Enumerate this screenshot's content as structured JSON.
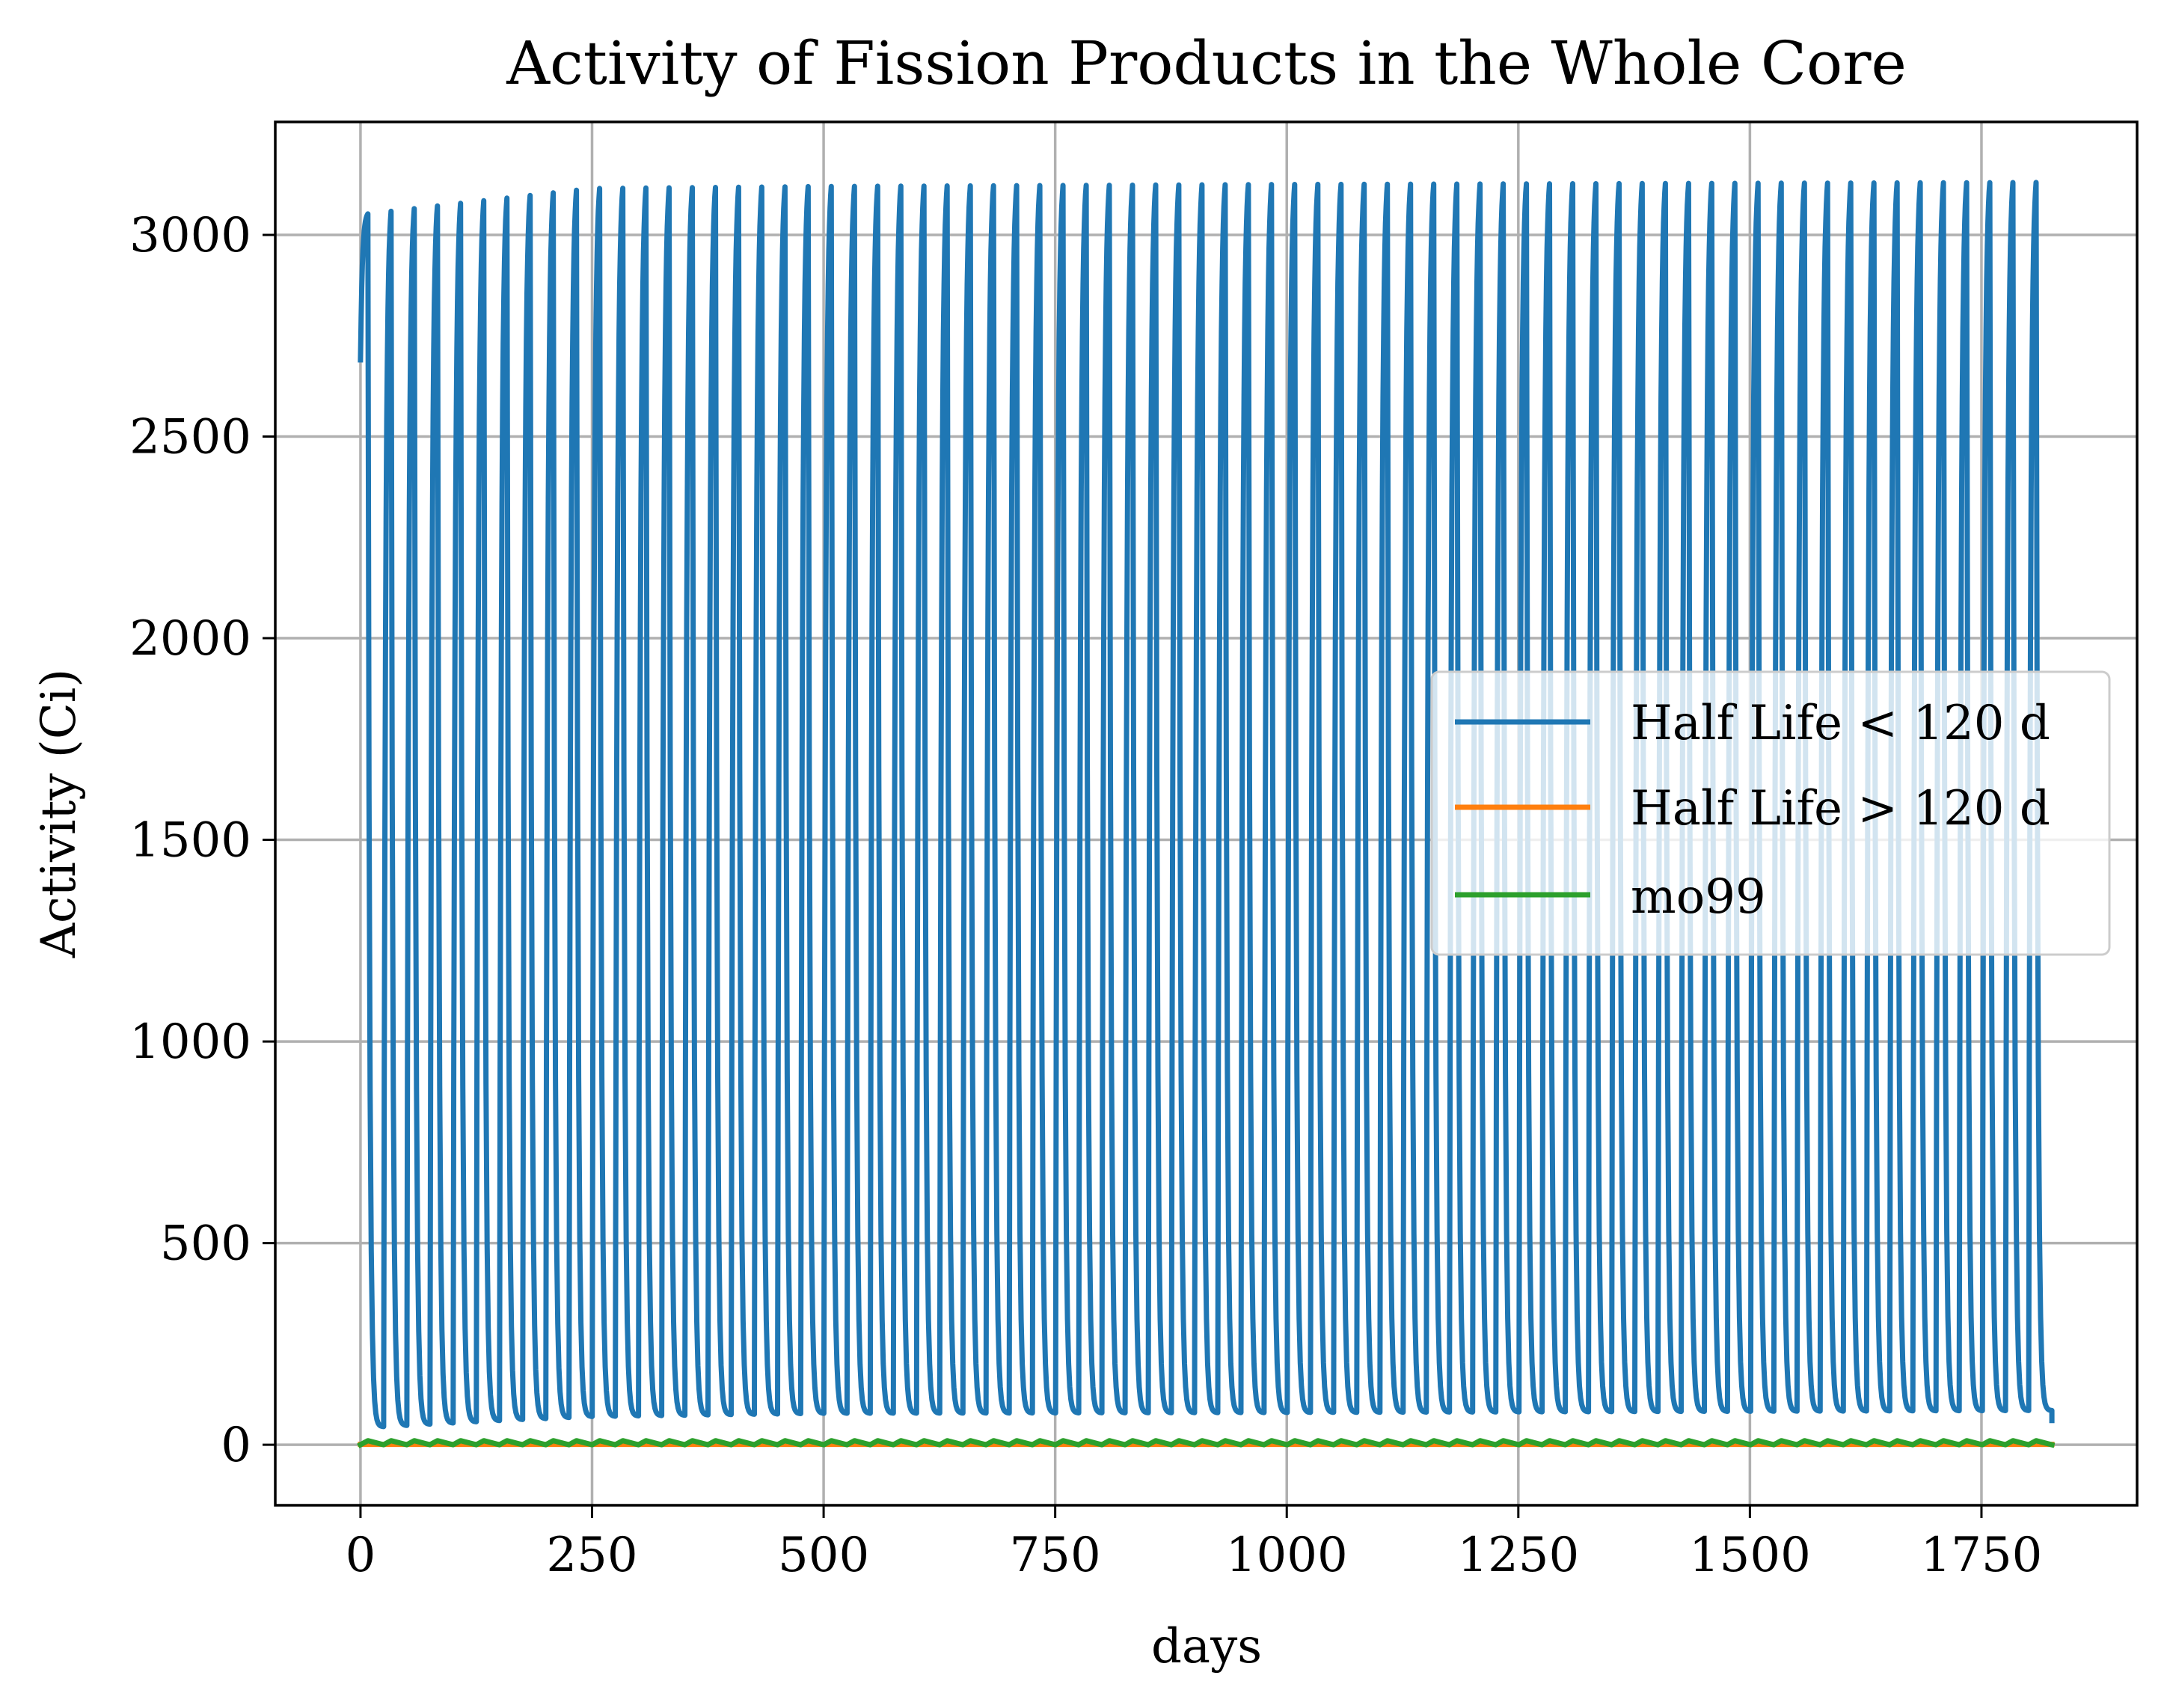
{
  "chart_data": {
    "type": "line",
    "title": "Activity of Fission Products in the Whole Core",
    "xlabel": "days",
    "ylabel": "Activity (Ci)",
    "xlim": [
      -92,
      1918
    ],
    "ylim": [
      -150,
      3280
    ],
    "x_ticks": [
      0,
      250,
      500,
      750,
      1000,
      1250,
      1500,
      1750
    ],
    "x_tick_labels": [
      "0",
      "250",
      "500",
      "750",
      "1000",
      "1250",
      "1500",
      "1750"
    ],
    "y_ticks": [
      0,
      500,
      1000,
      1500,
      2000,
      2500,
      3000
    ],
    "y_tick_labels": [
      "0",
      "500",
      "1000",
      "1500",
      "2000",
      "2500",
      "3000"
    ],
    "grid": true,
    "legend_position": "center-right",
    "series": [
      {
        "name": "Half Life < 120 d",
        "color": "#1f77b4",
        "pattern": "periodic",
        "x_start": 0,
        "x_end": 1826,
        "cycles": 73,
        "initial_value": 2690,
        "peaks": [
          [
            0,
            3050
          ],
          [
            250,
            3115
          ],
          [
            500,
            3120
          ],
          [
            1000,
            3125
          ],
          [
            1826,
            3130
          ]
        ],
        "troughs": [
          [
            25,
            45
          ],
          [
            150,
            60
          ],
          [
            250,
            70
          ],
          [
            500,
            78
          ],
          [
            1000,
            80
          ],
          [
            1826,
            85
          ]
        ],
        "final_value": 60
      },
      {
        "name": "Half Life > 120 d",
        "color": "#ff7f0e",
        "pattern": "flat",
        "x_start": 0,
        "x_end": 1826,
        "value": 1
      },
      {
        "name": "mo99",
        "color": "#2ca02c",
        "pattern": "periodic",
        "x_start": 0,
        "x_end": 1826,
        "cycles": 73,
        "min_value": 0,
        "max_value": 10
      }
    ]
  }
}
